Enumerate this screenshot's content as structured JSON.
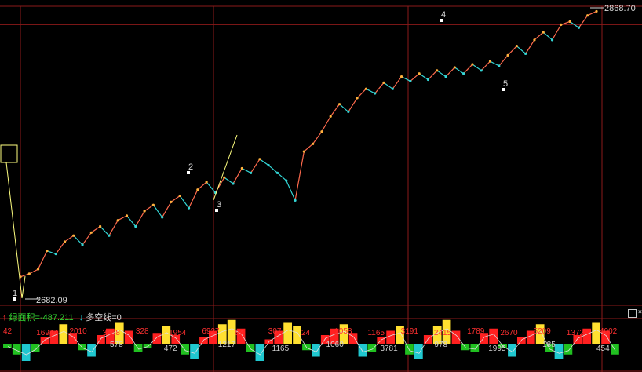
{
  "chart_data": {
    "type": "line",
    "price_line": {
      "values": [
        2695,
        2697,
        2700,
        2712,
        2710,
        2718,
        2722,
        2716,
        2724,
        2728,
        2722,
        2732,
        2735,
        2728,
        2738,
        2742,
        2734,
        2744,
        2748,
        2740,
        2752,
        2757,
        2750,
        2760,
        2756,
        2766,
        2763,
        2772,
        2768,
        2763,
        2758,
        2745,
        2777,
        2782,
        2790,
        2800,
        2808,
        2803,
        2812,
        2818,
        2815,
        2822,
        2818,
        2826,
        2823,
        2828,
        2824,
        2830,
        2826,
        2832,
        2828,
        2834,
        2830,
        2836,
        2833,
        2840,
        2846,
        2841,
        2850,
        2855,
        2850,
        2860,
        2862,
        2858,
        2866,
        2868.7
      ],
      "ylim": [
        2680,
        2872
      ]
    },
    "grid": true,
    "reference_lines": {
      "y_values": [
        2868.7,
        2860.0
      ]
    },
    "wave_labels": [
      "1",
      "2",
      "3",
      "4",
      "5"
    ],
    "price_labels": {
      "high": "2868.70",
      "low": "2682.09"
    },
    "indicator_panel": {
      "title": "绿面积=-487.211",
      "subtitle": "多空线=0",
      "bars": [
        -10,
        -25,
        -40,
        -20,
        15,
        30,
        45,
        25,
        -15,
        -30,
        20,
        35,
        50,
        30,
        -20,
        -10,
        25,
        40,
        20,
        -25,
        -35,
        15,
        30,
        45,
        55,
        35,
        -20,
        -40,
        10,
        30,
        50,
        40,
        -15,
        -30,
        20,
        35,
        45,
        25,
        -30,
        -20,
        15,
        30,
        40,
        -25,
        -35,
        20,
        40,
        55,
        30,
        -15,
        -20,
        25,
        35,
        -10,
        -30,
        15,
        30,
        45,
        -20,
        -35,
        -25,
        20,
        35,
        50,
        30,
        -25
      ],
      "number_labels": [
        {
          "text": "42",
          "color": "#ff3030"
        },
        {
          "text": "16944",
          "color": "#ff3030"
        },
        {
          "text": "2010",
          "color": "#ff3030"
        },
        {
          "text": "3468",
          "color": "#ff3030"
        },
        {
          "text": "328",
          "color": "#ff3030"
        },
        {
          "text": "1954",
          "color": "#ff3030"
        },
        {
          "text": "6927",
          "color": "#ff3030"
        },
        {
          "text": "84",
          "color": "#ff3030"
        },
        {
          "text": "307",
          "color": "#ff3030"
        },
        {
          "text": "24",
          "color": "#ff3030"
        },
        {
          "text": "1058",
          "color": "#ff3030"
        },
        {
          "text": "1165",
          "color": "#ff3030"
        },
        {
          "text": "3191",
          "color": "#ff3030"
        },
        {
          "text": "2415",
          "color": "#ff3030"
        },
        {
          "text": "1789",
          "color": "#ff3030"
        },
        {
          "text": "2670",
          "color": "#ff3030"
        },
        {
          "text": "5209",
          "color": "#ff3030"
        },
        {
          "text": "1372",
          "color": "#ff3030"
        },
        {
          "text": "4002",
          "color": "#ff3030"
        },
        {
          "text": "578",
          "color": "#d0d0d0"
        },
        {
          "text": "472",
          "color": "#d0d0d0"
        },
        {
          "text": "1217",
          "color": "#d0d0d0"
        },
        {
          "text": "1165",
          "color": "#d0d0d0"
        },
        {
          "text": "1060",
          "color": "#d0d0d0"
        },
        {
          "text": "3781",
          "color": "#d0d0d0"
        },
        {
          "text": "978",
          "color": "#d0d0d0"
        },
        {
          "text": "1995",
          "color": "#d0d0d0"
        },
        {
          "text": "185",
          "color": "#d0d0d0"
        },
        {
          "text": "454",
          "color": "#d0d0d0"
        }
      ]
    }
  },
  "colors": {
    "grid": "#8b1a1a",
    "line_up": "#ff6a4d",
    "line_down": "#33d6d6",
    "dot_up": "#ffb13d",
    "dot_down": "#33d6d6",
    "wave": "#ffff80",
    "label": "#d8d8d8",
    "indicator_title": "#33d633",
    "indicator_red": "#ff2020",
    "indicator_yellow": "#ffe030",
    "indicator_green": "#20c020",
    "indicator_cyan": "#20c8d0",
    "arrow_red": "#ff3030",
    "arrow_cyan": "#20c8d0"
  },
  "icons": {
    "arrow_up": "↑",
    "arrow_down": "↓",
    "close": "×",
    "restore": "□"
  }
}
